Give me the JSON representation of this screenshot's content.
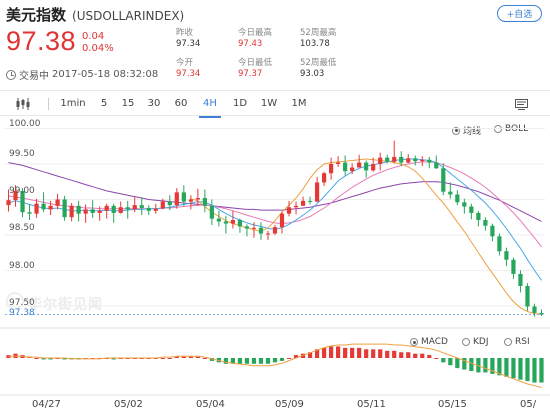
{
  "header": {
    "name": "美元指数",
    "code": "(USDOLLARINDEX)",
    "add_label": "+自选",
    "price": "97.38",
    "change": "0.04",
    "change_pct": "0.04%",
    "status": "交易中",
    "timestamp": "2017-05-18 08:32:08",
    "stats": [
      {
        "label": "昨收",
        "value": "97.34",
        "color": "dark"
      },
      {
        "label": "今日最高",
        "value": "97.43",
        "color": "red"
      },
      {
        "label": "52周最高",
        "value": "103.78",
        "color": "dark"
      },
      {
        "label": "今开",
        "value": "97.34",
        "color": "red"
      },
      {
        "label": "今日最低",
        "value": "97.37",
        "color": "red"
      },
      {
        "label": "52周最低",
        "value": "93.03",
        "color": "dark"
      }
    ]
  },
  "toolbar": {
    "items": [
      "1min",
      "5",
      "15",
      "30",
      "60",
      "4H",
      "1D",
      "1W",
      "1M"
    ],
    "active": "4H"
  },
  "indicators_top": [
    {
      "label": "均线",
      "selected": true
    },
    {
      "label": "BOLL",
      "selected": false
    }
  ],
  "indicators_bottom": [
    {
      "label": "MACD",
      "selected": true
    },
    {
      "label": "KDJ",
      "selected": false
    },
    {
      "label": "RSI",
      "selected": false
    }
  ],
  "watermark": "华尔街见闻",
  "colors": {
    "up": "#e53935",
    "down": "#26a65b",
    "ma_blue": "#4aa8e8",
    "ma_pink": "#e87ab8",
    "ma_purple": "#8e44ad",
    "ma_orange": "#f0a040",
    "accent": "#3f7fd6"
  },
  "chart_data": {
    "type": "candlestick",
    "y_ticks": [
      "100.00",
      "99.50",
      "99.00",
      "98.50",
      "98.00",
      "97.50"
    ],
    "current_price_label": "97.38",
    "ylim": [
      97.3,
      100.05
    ],
    "x_tick_labels": [
      "04/27",
      "05/02",
      "05/04",
      "05/09",
      "05/11",
      "05/15",
      "05/"
    ],
    "candles": [
      [
        98.92,
        98.99,
        99.14,
        98.83
      ],
      [
        98.99,
        99.12,
        99.2,
        98.9
      ],
      [
        99.12,
        98.82,
        99.16,
        98.75
      ],
      [
        98.82,
        98.8,
        98.93,
        98.71
      ],
      [
        98.8,
        98.94,
        99.01,
        98.74
      ],
      [
        98.94,
        98.86,
        99.1,
        98.82
      ],
      [
        98.86,
        98.91,
        98.98,
        98.78
      ],
      [
        98.91,
        99.0,
        99.08,
        98.86
      ],
      [
        99.0,
        98.75,
        99.05,
        98.7
      ],
      [
        98.75,
        98.91,
        98.95,
        98.69
      ],
      [
        98.91,
        98.8,
        98.98,
        98.69
      ],
      [
        98.8,
        98.86,
        98.93,
        98.67
      ],
      [
        98.86,
        98.81,
        98.99,
        98.74
      ],
      [
        98.81,
        98.84,
        98.9,
        98.7
      ],
      [
        98.84,
        98.91,
        98.94,
        98.73
      ],
      [
        98.91,
        98.81,
        98.94,
        98.67
      ],
      [
        98.81,
        98.89,
        98.97,
        98.8
      ],
      [
        98.89,
        98.86,
        98.98,
        98.73
      ],
      [
        98.86,
        98.92,
        99.04,
        98.82
      ],
      [
        98.92,
        98.88,
        99.03,
        98.78
      ],
      [
        98.88,
        98.84,
        98.92,
        98.78
      ],
      [
        98.84,
        98.87,
        98.94,
        98.8
      ],
      [
        98.87,
        98.97,
        99.01,
        98.86
      ],
      [
        98.97,
        98.92,
        99.06,
        98.85
      ],
      [
        98.92,
        99.1,
        99.16,
        98.87
      ],
      [
        99.1,
        98.97,
        99.2,
        98.91
      ],
      [
        98.97,
        99.0,
        99.06,
        98.86
      ],
      [
        99.0,
        99.02,
        99.15,
        98.91
      ],
      [
        99.02,
        98.91,
        99.14,
        98.82
      ],
      [
        98.91,
        98.73,
        99.0,
        98.64
      ],
      [
        98.73,
        98.69,
        98.84,
        98.62
      ],
      [
        98.69,
        98.66,
        98.77,
        98.52
      ],
      [
        98.66,
        98.71,
        98.84,
        98.59
      ],
      [
        98.71,
        98.62,
        98.73,
        98.53
      ],
      [
        98.62,
        98.59,
        98.65,
        98.48
      ],
      [
        98.59,
        98.6,
        98.68,
        98.46
      ],
      [
        98.6,
        98.52,
        98.68,
        98.43
      ],
      [
        98.52,
        98.52,
        98.56,
        98.43
      ],
      [
        98.52,
        98.61,
        98.64,
        98.5
      ],
      [
        98.61,
        98.8,
        98.83,
        98.52
      ],
      [
        98.8,
        98.89,
        98.98,
        98.76
      ],
      [
        98.89,
        98.91,
        98.97,
        98.79
      ],
      [
        98.91,
        98.98,
        99.04,
        98.91
      ],
      [
        98.98,
        98.97,
        99.04,
        98.93
      ],
      [
        98.97,
        99.24,
        99.32,
        98.96
      ],
      [
        99.24,
        99.37,
        99.39,
        99.19
      ],
      [
        99.37,
        99.5,
        99.59,
        99.28
      ],
      [
        99.5,
        99.52,
        99.61,
        99.46
      ],
      [
        99.52,
        99.4,
        99.62,
        99.34
      ],
      [
        99.4,
        99.45,
        99.51,
        99.36
      ],
      [
        99.45,
        99.52,
        99.63,
        99.45
      ],
      [
        99.52,
        99.41,
        99.55,
        99.31
      ],
      [
        99.41,
        99.5,
        99.59,
        99.39
      ],
      [
        99.5,
        99.59,
        99.66,
        99.41
      ],
      [
        99.59,
        99.53,
        99.63,
        99.51
      ],
      [
        99.53,
        99.6,
        99.83,
        99.51
      ],
      [
        99.6,
        99.52,
        99.68,
        99.47
      ],
      [
        99.52,
        99.58,
        99.64,
        99.51
      ],
      [
        99.58,
        99.54,
        99.62,
        99.48
      ],
      [
        99.54,
        99.56,
        99.61,
        99.47
      ],
      [
        99.56,
        99.52,
        99.6,
        99.44
      ],
      [
        99.52,
        99.44,
        99.62,
        99.43
      ],
      [
        99.44,
        99.11,
        99.51,
        99.06
      ],
      [
        99.11,
        99.07,
        99.24,
        99.01
      ],
      [
        99.07,
        98.96,
        99.13,
        98.92
      ],
      [
        98.96,
        98.9,
        99.01,
        98.8
      ],
      [
        98.9,
        98.81,
        98.94,
        98.72
      ],
      [
        98.81,
        98.71,
        98.84,
        98.62
      ],
      [
        98.71,
        98.63,
        98.75,
        98.56
      ],
      [
        98.63,
        98.48,
        98.66,
        98.41
      ],
      [
        98.48,
        98.27,
        98.52,
        98.21
      ],
      [
        98.27,
        98.15,
        98.32,
        98.06
      ],
      [
        98.15,
        97.95,
        98.18,
        97.88
      ],
      [
        97.95,
        97.78,
        98.0,
        97.69
      ],
      [
        97.78,
        97.49,
        97.82,
        97.43
      ],
      [
        97.49,
        97.4,
        97.53,
        97.35
      ],
      [
        97.4,
        97.38,
        97.45,
        97.36
      ]
    ],
    "ma_blue": [
      98.95,
      98.98,
      98.96,
      98.93,
      98.9,
      98.88,
      98.87,
      98.88,
      98.86,
      98.84,
      98.84,
      98.85,
      98.84,
      98.84,
      98.85,
      98.84,
      98.84,
      98.85,
      98.86,
      98.86,
      98.87,
      98.87,
      98.88,
      98.89,
      98.91,
      98.93,
      98.95,
      98.97,
      98.96,
      98.92,
      98.86,
      98.8,
      98.75,
      98.71,
      98.67,
      98.64,
      98.62,
      98.59,
      98.58,
      98.6,
      98.65,
      98.71,
      98.78,
      98.85,
      98.94,
      99.04,
      99.15,
      99.26,
      99.33,
      99.39,
      99.44,
      99.47,
      99.49,
      99.51,
      99.53,
      99.55,
      99.56,
      99.57,
      99.57,
      99.56,
      99.55,
      99.52,
      99.45,
      99.37,
      99.29,
      99.21,
      99.13,
      99.04,
      98.95,
      98.84,
      98.72,
      98.59,
      98.45,
      98.31,
      98.15,
      98.0,
      97.86
    ],
    "ma_pink": [
      99.05,
      99.03,
      99.02,
      99.0,
      98.98,
      98.96,
      98.94,
      98.92,
      98.91,
      98.9,
      98.89,
      98.88,
      98.88,
      98.87,
      98.87,
      98.87,
      98.87,
      98.87,
      98.87,
      98.87,
      98.87,
      98.87,
      98.88,
      98.88,
      98.89,
      98.9,
      98.91,
      98.92,
      98.92,
      98.91,
      98.89,
      98.87,
      98.84,
      98.81,
      98.78,
      98.75,
      98.72,
      98.69,
      98.67,
      98.66,
      98.67,
      98.69,
      98.72,
      98.76,
      98.82,
      98.88,
      98.95,
      99.03,
      99.1,
      99.17,
      99.23,
      99.29,
      99.34,
      99.38,
      99.42,
      99.45,
      99.48,
      99.5,
      99.52,
      99.53,
      99.53,
      99.52,
      99.49,
      99.45,
      99.41,
      99.36,
      99.3,
      99.24,
      99.17,
      99.09,
      99.0,
      98.91,
      98.81,
      98.7,
      98.58,
      98.46,
      98.33
    ],
    "ma_purple": [
      99.52,
      99.5,
      99.48,
      99.45,
      99.42,
      99.39,
      99.36,
      99.33,
      99.3,
      99.27,
      99.24,
      99.21,
      99.18,
      99.15,
      99.12,
      99.1,
      99.08,
      99.06,
      99.04,
      99.02,
      99.0,
      98.99,
      98.98,
      98.97,
      98.96,
      98.95,
      98.94,
      98.93,
      98.92,
      98.91,
      98.9,
      98.89,
      98.88,
      98.87,
      98.86,
      98.86,
      98.85,
      98.85,
      98.85,
      98.85,
      98.86,
      98.87,
      98.88,
      98.89,
      98.91,
      98.93,
      98.95,
      98.98,
      99.01,
      99.04,
      99.07,
      99.1,
      99.13,
      99.16,
      99.18,
      99.2,
      99.22,
      99.23,
      99.24,
      99.25,
      99.25,
      99.25,
      99.24,
      99.22,
      99.2,
      99.17,
      99.14,
      99.11,
      99.07,
      99.03,
      98.99,
      98.94,
      98.89,
      98.84,
      98.79,
      98.74,
      98.69
    ],
    "ma_orange": [
      null,
      null,
      null,
      null,
      null,
      null,
      null,
      null,
      null,
      null,
      null,
      null,
      null,
      null,
      null,
      null,
      null,
      null,
      null,
      null,
      null,
      null,
      null,
      null,
      null,
      null,
      99.01,
      98.98,
      98.9,
      98.82,
      98.76,
      98.7,
      98.66,
      98.63,
      98.6,
      98.57,
      98.55,
      98.6,
      98.7,
      98.82,
      98.92,
      99.02,
      99.15,
      99.3,
      99.42,
      99.5,
      99.52,
      99.53,
      99.54,
      99.55,
      99.56,
      99.57,
      99.56,
      99.55,
      99.54,
      99.52,
      99.5,
      99.46,
      99.4,
      99.3,
      99.18,
      99.06,
      98.95,
      98.82,
      98.68,
      98.55,
      98.4,
      98.25,
      98.1,
      97.96,
      97.82,
      97.68,
      97.56,
      97.47,
      97.42,
      97.39,
      97.38
    ],
    "macd_hist": [
      0.02,
      0.03,
      0.02,
      0.01,
      0.0,
      -0.01,
      -0.01,
      0.0,
      -0.01,
      -0.01,
      -0.01,
      0.0,
      0.0,
      0.0,
      0.0,
      -0.01,
      0.0,
      0.0,
      0.0,
      0.0,
      0.0,
      0.0,
      0.0,
      0.0,
      0.01,
      0.01,
      0.01,
      0.01,
      0.0,
      -0.02,
      -0.03,
      -0.04,
      -0.04,
      -0.04,
      -0.04,
      -0.04,
      -0.04,
      -0.04,
      -0.03,
      -0.02,
      0.0,
      0.02,
      0.03,
      0.04,
      0.06,
      0.07,
      0.08,
      0.08,
      0.07,
      0.07,
      0.07,
      0.06,
      0.06,
      0.06,
      0.05,
      0.05,
      0.04,
      0.04,
      0.03,
      0.03,
      0.02,
      0.0,
      -0.03,
      -0.05,
      -0.07,
      -0.08,
      -0.09,
      -0.1,
      -0.1,
      -0.11,
      -0.12,
      -0.13,
      -0.14,
      -0.15,
      -0.16,
      -0.17,
      -0.17
    ],
    "macd_dif": [
      0.02,
      0.02,
      0.02,
      0.01,
      0.01,
      0.0,
      0.0,
      0.0,
      0.0,
      -0.01,
      -0.01,
      -0.01,
      -0.01,
      -0.01,
      0.0,
      0.0,
      0.0,
      0.0,
      0.0,
      0.0,
      0.0,
      0.0,
      0.01,
      0.01,
      0.02,
      0.02,
      0.02,
      0.02,
      0.01,
      -0.01,
      -0.03,
      -0.05,
      -0.06,
      -0.07,
      -0.08,
      -0.09,
      -0.09,
      -0.09,
      -0.08,
      -0.06,
      -0.03,
      0.0,
      0.03,
      0.06,
      0.09,
      0.12,
      0.14,
      0.15,
      0.15,
      0.16,
      0.16,
      0.16,
      0.16,
      0.16,
      0.16,
      0.15,
      0.15,
      0.14,
      0.13,
      0.12,
      0.11,
      0.09,
      0.06,
      0.03,
      0.0,
      -0.03,
      -0.06,
      -0.09,
      -0.12,
      -0.15,
      -0.18,
      -0.21,
      -0.24,
      -0.27,
      -0.3,
      -0.32,
      -0.34
    ]
  }
}
